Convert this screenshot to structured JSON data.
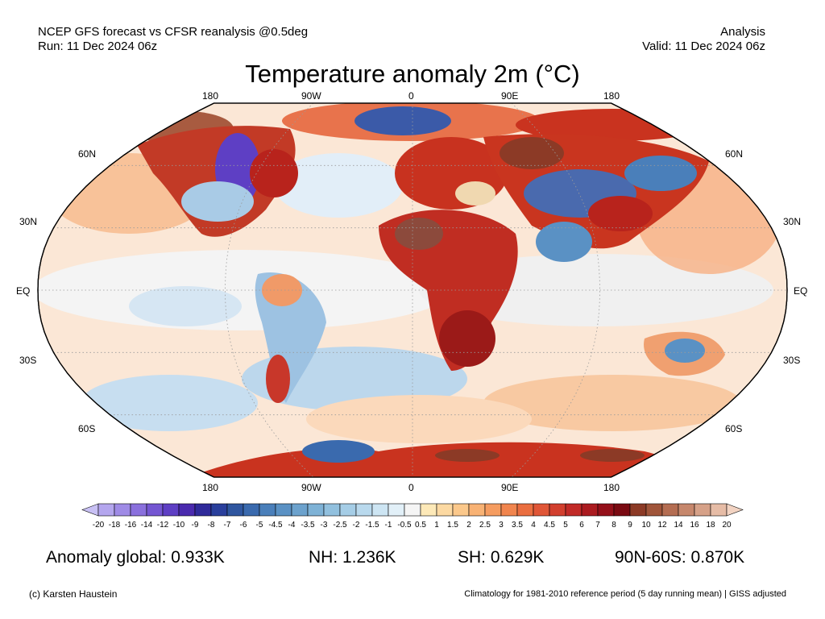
{
  "header": {
    "left_line1": "NCEP GFS forecast vs CFSR reanalysis @0.5deg",
    "left_line2": "Run: 11 Dec 2024 06z",
    "right_line1": "Analysis",
    "right_line2": "Valid: 11 Dec 2024 06z"
  },
  "title": "Temperature anomaly 2m (°C)",
  "axes": {
    "lon_top": [
      "180",
      "90W",
      "0",
      "90E",
      "180"
    ],
    "lon_bottom": [
      "180",
      "90W",
      "0",
      "90E",
      "180"
    ],
    "lat_left": [
      "60N",
      "30N",
      "EQ",
      "30S",
      "60S"
    ],
    "lat_right": [
      "60N",
      "30N",
      "EQ",
      "30S",
      "60S"
    ]
  },
  "colorbar": {
    "tick_labels": [
      "-20",
      "-18",
      "-16",
      "-14",
      "-12",
      "-10",
      "-9",
      "-8",
      "-7",
      "-6",
      "-5",
      "-4.5",
      "-4",
      "-3.5",
      "-3",
      "-2.5",
      "-2",
      "-1.5",
      "-1",
      "-0.5",
      "0.5",
      "1",
      "1.5",
      "2",
      "2.5",
      "3",
      "3.5",
      "4",
      "4.5",
      "5",
      "6",
      "7",
      "8",
      "9",
      "10",
      "12",
      "14",
      "16",
      "18",
      "20"
    ],
    "colors": [
      "#c8c0f4",
      "#b4a6ee",
      "#9f8be6",
      "#8a70dd",
      "#7456d2",
      "#5e3fc4",
      "#4a2aae",
      "#2f2a9a",
      "#2a3f9c",
      "#2f569f",
      "#3a6aae",
      "#4a7fba",
      "#5a91c4",
      "#6ca2cd",
      "#7eb2d6",
      "#91c0de",
      "#a5cde6",
      "#b9d9ed",
      "#cde5f3",
      "#e2f0f8",
      "#f5f5f5",
      "#fde9b8",
      "#fcd9a2",
      "#fbc88b",
      "#f8b274",
      "#f59c60",
      "#f1854e",
      "#ea6e40",
      "#e05637",
      "#d23f2e",
      "#c12a27",
      "#ab1b20",
      "#94101a",
      "#7a0a12",
      "#8c3a26",
      "#a0553a",
      "#b46d52",
      "#c6876c",
      "#d6a188",
      "#e6bca6",
      "#f2d3c2"
    ]
  },
  "stats": {
    "global": "Anomaly global: 0.933K",
    "nh": "NH: 1.236K",
    "sh": "SH: 0.629K",
    "arctic": "90N-60S: 0.870K"
  },
  "footer": {
    "left": "(c) Karsten Haustein",
    "right": "Climatology for 1981-2010 reference period (5 day running mean) | GISS adjusted"
  }
}
